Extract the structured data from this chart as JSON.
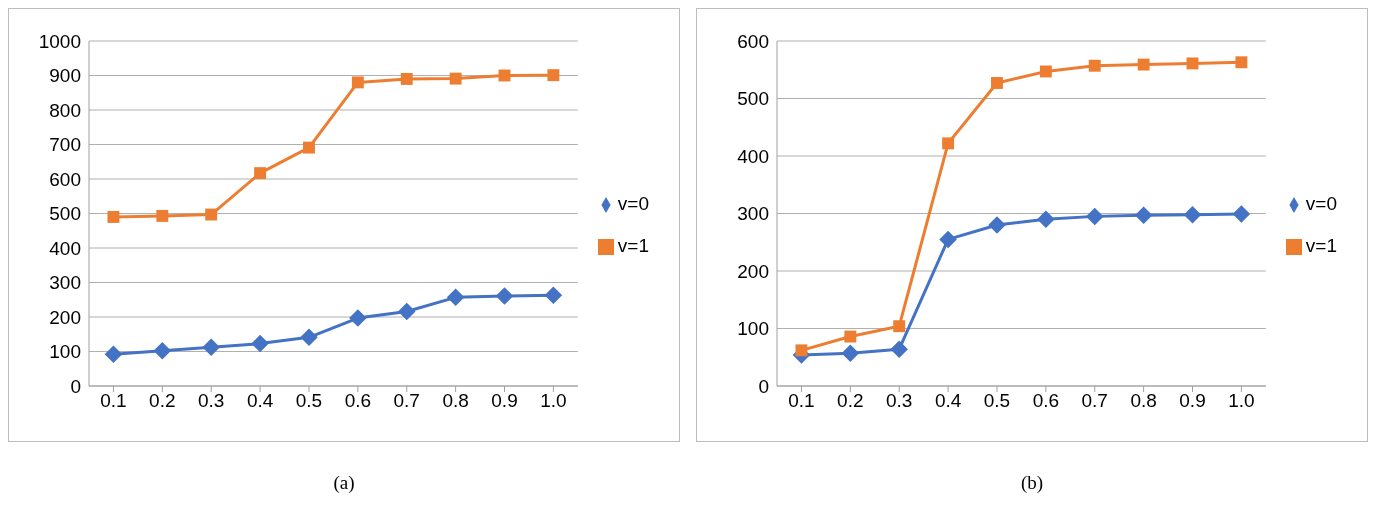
{
  "chart_data": [
    {
      "type": "line",
      "categories": [
        "0.1",
        "0.2",
        "0.3",
        "0.4",
        "0.5",
        "0.6",
        "0.7",
        "0.8",
        "0.9",
        "1.0"
      ],
      "series": [
        {
          "name": "v=0",
          "color": "#4472c4",
          "marker": "diamond",
          "values": [
            92,
            102,
            112,
            123,
            141,
            197,
            216,
            257,
            261,
            263
          ]
        },
        {
          "name": "v=1",
          "color": "#ed7d31",
          "marker": "square",
          "values": [
            490,
            493,
            497,
            617,
            691,
            880,
            890,
            891,
            900,
            901
          ]
        }
      ],
      "ylim": [
        0,
        1000
      ],
      "yticks": [
        0,
        100,
        200,
        300,
        400,
        500,
        600,
        700,
        800,
        900,
        1000
      ],
      "grid": "y",
      "legend": "right",
      "annotations": [
        "(a)"
      ]
    },
    {
      "type": "line",
      "categories": [
        "0.1",
        "0.2",
        "0.3",
        "0.4",
        "0.5",
        "0.6",
        "0.7",
        "0.8",
        "0.9",
        "1.0"
      ],
      "series": [
        {
          "name": "v=0",
          "color": "#4472c4",
          "marker": "diamond",
          "values": [
            54,
            57,
            64,
            255,
            280,
            290,
            295,
            297,
            298,
            299
          ]
        },
        {
          "name": "v=1",
          "color": "#ed7d31",
          "marker": "square",
          "values": [
            62,
            86,
            104,
            422,
            527,
            547,
            557,
            559,
            561,
            563
          ]
        }
      ],
      "ylim": [
        0,
        600
      ],
      "yticks": [
        0,
        100,
        200,
        300,
        400,
        500,
        600
      ],
      "grid": "y",
      "legend": "right",
      "annotations": [
        "(b)"
      ]
    }
  ]
}
